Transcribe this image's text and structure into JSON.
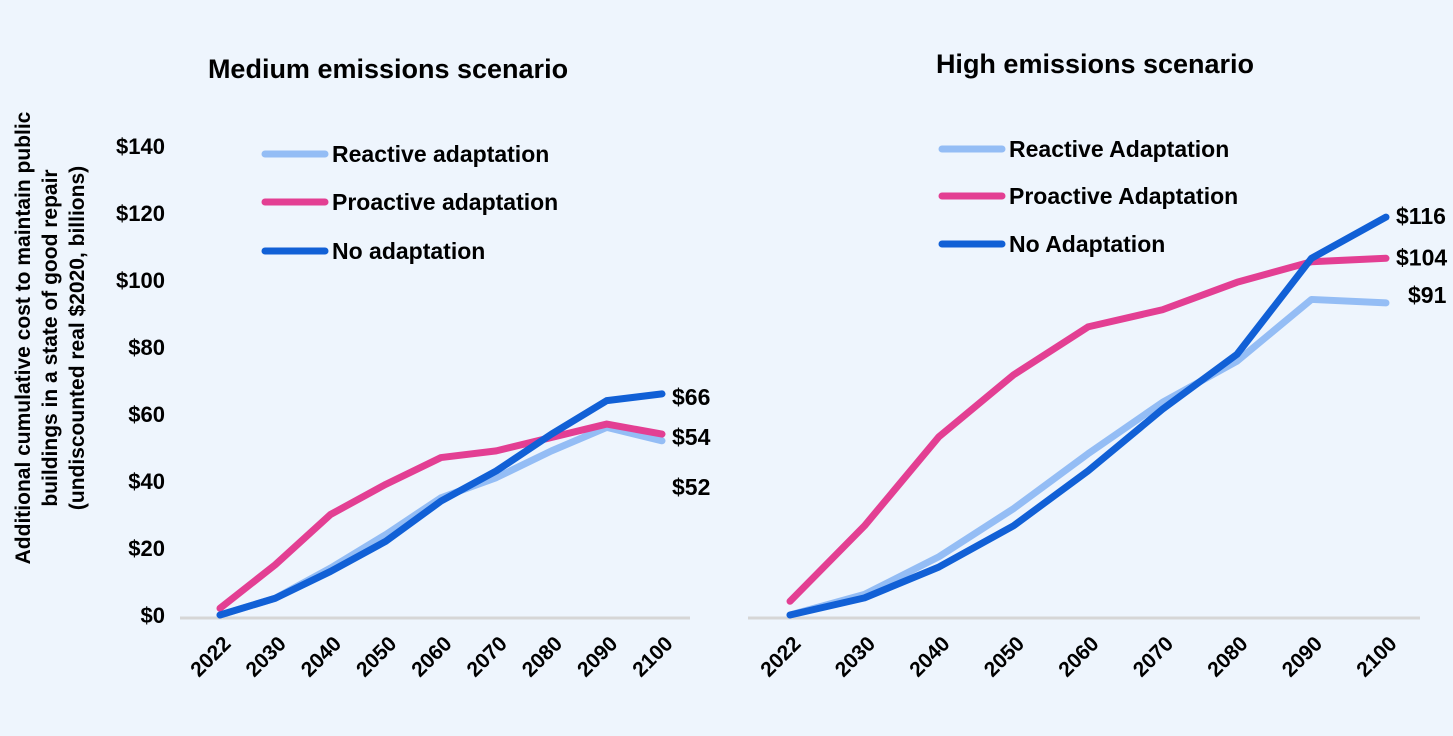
{
  "ylabel_lines": [
    "Additional cumulative cost to maintain public",
    "buildings in a state of good repair",
    "(undiscounted real $2020, billions)"
  ],
  "y_ticks": [
    "$0",
    "$20",
    "$40",
    "$60",
    "$80",
    "$100",
    "$120",
    "$140"
  ],
  "colors": {
    "reactive": "#94bdf5",
    "proactive": "#e33f93",
    "none": "#1160d6",
    "axis": "#d6d6d6",
    "background": "#eef5fd"
  },
  "chart_data": [
    {
      "type": "line",
      "title": "Medium emissions scenario",
      "xlabel": "",
      "ylabel": "Additional cumulative cost to maintain public buildings in a state of good repair (undiscounted real $2020, billions)",
      "ylim": [
        0,
        140
      ],
      "categories": [
        "2022",
        "2030",
        "2040",
        "2050",
        "2060",
        "2070",
        "2080",
        "2090",
        "2100"
      ],
      "series": [
        {
          "name": "Reactive adaptation",
          "key": "reactive",
          "values": [
            0,
            5,
            14,
            24,
            35,
            41,
            49,
            56,
            52
          ],
          "end_label": "$52"
        },
        {
          "name": "Proactive adaptation",
          "key": "proactive",
          "values": [
            2,
            15,
            30,
            39,
            47,
            49,
            53,
            57,
            54
          ],
          "end_label": "$54"
        },
        {
          "name": "No adaptation",
          "key": "none",
          "values": [
            0,
            5,
            13,
            22,
            34,
            43,
            54,
            64,
            66
          ],
          "end_label": "$66"
        }
      ],
      "legend": "top"
    },
    {
      "type": "line",
      "title": "High emissions scenario",
      "ylim": [
        0,
        140
      ],
      "categories": [
        "2022",
        "2030",
        "2040",
        "2050",
        "2060",
        "2070",
        "2080",
        "2090",
        "2100"
      ],
      "series": [
        {
          "name": "Reactive Adaptation",
          "key": "reactive",
          "values": [
            0,
            6,
            17,
            31,
            47,
            62,
            74,
            92,
            91
          ],
          "end_label": "$91"
        },
        {
          "name": "Proactive Adaptation",
          "key": "proactive",
          "values": [
            4,
            26,
            52,
            70,
            84,
            89,
            97,
            103,
            104
          ],
          "end_label": "$104"
        },
        {
          "name": "No Adaptation",
          "key": "none",
          "values": [
            0,
            5,
            14,
            26,
            42,
            60,
            76,
            104,
            116
          ],
          "end_label": "$116"
        }
      ],
      "legend": "top"
    }
  ]
}
